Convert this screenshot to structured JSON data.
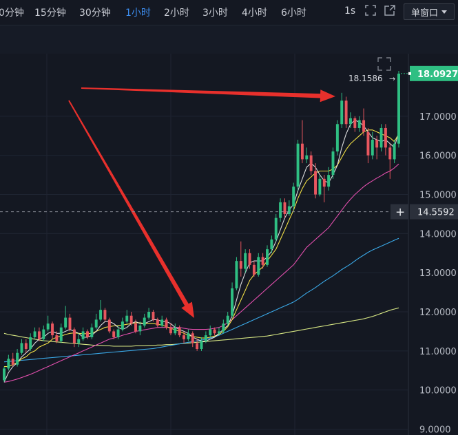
{
  "toolbar": {
    "timeframes": [
      {
        "label": "0分钟",
        "active": false
      },
      {
        "label": "15分钟",
        "active": false
      },
      {
        "label": "30分钟",
        "active": false
      },
      {
        "label": "1小时",
        "active": true
      },
      {
        "label": "2小时",
        "active": false
      },
      {
        "label": "3小时",
        "active": false
      },
      {
        "label": "4小时",
        "active": false
      },
      {
        "label": "6小时",
        "active": false
      }
    ],
    "seconds_label": "1s",
    "window_mode": "单窗口"
  },
  "colors": {
    "up": "#2fbf83",
    "down": "#e8575f",
    "ma5": "#ffffff",
    "ma10": "#f2e046",
    "ma30": "#e34fae",
    "ma60": "#3aa9e8",
    "ma120": "#d8e884",
    "arrow": "#e8302c",
    "last_price_bg": "#2fbf83"
  },
  "chart_data": {
    "type": "candlestick",
    "ylim": [
      8.85,
      18.6
    ],
    "y_ticks": [
      "18.0927",
      "17.0000",
      "16.0000",
      "15.0000",
      "14.0000",
      "13.0000",
      "12.0000",
      "11.0000",
      "10.0000",
      "9.0000"
    ],
    "last_price": "18.0927",
    "high_marker": "18.1586",
    "crosshair_price": "14.5592",
    "candles": [
      [
        10.25,
        10.55,
        10.2,
        10.6
      ],
      [
        10.55,
        10.8,
        10.5,
        10.9
      ],
      [
        10.8,
        10.65,
        10.6,
        10.95
      ],
      [
        10.65,
        10.95,
        10.6,
        11.05
      ],
      [
        10.95,
        11.2,
        10.9,
        11.3
      ],
      [
        11.2,
        11.05,
        10.95,
        11.3
      ],
      [
        11.05,
        11.35,
        11.0,
        11.45
      ],
      [
        11.35,
        11.5,
        11.3,
        11.6
      ],
      [
        11.5,
        11.3,
        11.25,
        11.6
      ],
      [
        11.3,
        11.55,
        11.25,
        11.65
      ],
      [
        11.55,
        11.7,
        11.5,
        11.9
      ],
      [
        11.7,
        11.4,
        11.3,
        11.75
      ],
      [
        11.4,
        11.25,
        11.2,
        11.5
      ],
      [
        11.25,
        11.6,
        11.2,
        11.7
      ],
      [
        11.6,
        11.85,
        11.55,
        12.15
      ],
      [
        11.85,
        11.55,
        11.5,
        11.95
      ],
      [
        11.55,
        11.2,
        11.1,
        11.6
      ],
      [
        11.2,
        11.3,
        11.1,
        11.45
      ],
      [
        11.3,
        11.5,
        11.25,
        11.6
      ],
      [
        11.5,
        11.35,
        11.3,
        11.55
      ],
      [
        11.35,
        11.6,
        11.3,
        11.7
      ],
      [
        11.6,
        11.8,
        11.55,
        11.95
      ],
      [
        11.8,
        12.05,
        11.75,
        12.3
      ],
      [
        12.05,
        11.8,
        11.75,
        12.1
      ],
      [
        11.8,
        11.5,
        11.45,
        11.85
      ],
      [
        11.5,
        11.35,
        11.3,
        11.55
      ],
      [
        11.35,
        11.55,
        11.3,
        11.65
      ],
      [
        11.55,
        11.75,
        11.5,
        11.85
      ],
      [
        11.75,
        11.9,
        11.7,
        12.05
      ],
      [
        11.9,
        11.7,
        11.65,
        12.0
      ],
      [
        11.7,
        11.5,
        11.45,
        11.8
      ],
      [
        11.5,
        11.65,
        11.4,
        11.75
      ],
      [
        11.65,
        11.85,
        11.6,
        11.95
      ],
      [
        11.85,
        12.0,
        11.8,
        12.1
      ],
      [
        12.0,
        11.8,
        11.75,
        12.05
      ],
      [
        11.8,
        11.65,
        11.6,
        11.85
      ],
      [
        11.65,
        11.8,
        11.6,
        11.9
      ],
      [
        11.8,
        11.6,
        11.55,
        11.85
      ],
      [
        11.6,
        11.45,
        11.4,
        11.7
      ],
      [
        11.45,
        11.6,
        11.4,
        11.7
      ],
      [
        11.6,
        11.4,
        11.35,
        11.65
      ],
      [
        11.4,
        11.3,
        11.2,
        11.5
      ],
      [
        11.3,
        11.45,
        11.25,
        11.55
      ],
      [
        11.45,
        11.2,
        11.1,
        11.5
      ],
      [
        11.2,
        11.05,
        11.0,
        11.3
      ],
      [
        11.05,
        11.25,
        11.0,
        11.35
      ],
      [
        11.25,
        11.4,
        11.2,
        11.5
      ],
      [
        11.4,
        11.55,
        11.35,
        11.65
      ],
      [
        11.55,
        11.45,
        11.4,
        11.6
      ],
      [
        11.45,
        11.5,
        11.4,
        11.6
      ],
      [
        11.5,
        11.7,
        11.45,
        11.8
      ],
      [
        11.7,
        11.9,
        11.65,
        12.0
      ],
      [
        11.9,
        12.6,
        11.85,
        12.75
      ],
      [
        12.6,
        13.3,
        12.55,
        13.4
      ],
      [
        13.3,
        13.1,
        12.9,
        13.8
      ],
      [
        13.1,
        13.5,
        13.0,
        13.6
      ],
      [
        13.5,
        13.2,
        13.1,
        13.6
      ],
      [
        13.2,
        12.95,
        12.9,
        13.3
      ],
      [
        12.95,
        13.4,
        12.9,
        13.5
      ],
      [
        13.4,
        13.2,
        13.1,
        13.5
      ],
      [
        13.2,
        13.6,
        13.15,
        13.7
      ],
      [
        13.6,
        13.85,
        13.5,
        13.95
      ],
      [
        13.85,
        14.4,
        13.8,
        14.5
      ],
      [
        14.4,
        14.8,
        14.3,
        14.9
      ],
      [
        14.8,
        14.5,
        14.4,
        14.9
      ],
      [
        14.5,
        14.7,
        14.45,
        14.85
      ],
      [
        14.7,
        15.2,
        14.6,
        15.3
      ],
      [
        15.2,
        16.3,
        15.1,
        16.4
      ],
      [
        16.3,
        15.9,
        15.8,
        16.9
      ],
      [
        15.9,
        16.0,
        15.8,
        16.2
      ],
      [
        16.0,
        15.6,
        15.5,
        16.1
      ],
      [
        15.6,
        15.0,
        14.9,
        15.8
      ],
      [
        15.0,
        15.4,
        14.95,
        15.5
      ],
      [
        15.4,
        15.2,
        14.8,
        15.5
      ],
      [
        15.2,
        15.5,
        15.1,
        15.7
      ],
      [
        15.5,
        16.1,
        15.4,
        16.2
      ],
      [
        16.1,
        16.8,
        16.0,
        16.9
      ],
      [
        16.8,
        17.4,
        16.7,
        17.6
      ],
      [
        17.4,
        16.8,
        16.7,
        17.5
      ],
      [
        16.8,
        16.95,
        16.7,
        17.1
      ],
      [
        16.95,
        16.7,
        16.6,
        17.0
      ],
      [
        16.7,
        16.9,
        16.6,
        17.0
      ],
      [
        16.9,
        16.6,
        16.5,
        17.2
      ],
      [
        16.6,
        16.0,
        15.8,
        16.7
      ],
      [
        16.0,
        16.4,
        15.9,
        16.6
      ],
      [
        16.4,
        16.2,
        15.9,
        16.5
      ],
      [
        16.2,
        16.7,
        16.1,
        16.8
      ],
      [
        16.7,
        16.2,
        16.0,
        16.8
      ],
      [
        16.2,
        15.9,
        15.4,
        16.3
      ],
      [
        15.9,
        16.3,
        15.8,
        16.4
      ],
      [
        16.3,
        18.09,
        16.2,
        18.16
      ]
    ],
    "ma5": [
      10.2,
      10.45,
      10.6,
      10.7,
      10.85,
      10.95,
      11.05,
      11.2,
      11.3,
      11.35,
      11.45,
      11.5,
      11.45,
      11.45,
      11.5,
      11.55,
      11.5,
      11.45,
      11.35,
      11.35,
      11.4,
      11.5,
      11.65,
      11.75,
      11.75,
      11.7,
      11.6,
      11.55,
      11.6,
      11.7,
      11.75,
      11.7,
      11.7,
      11.75,
      11.8,
      11.8,
      11.75,
      11.75,
      11.7,
      11.6,
      11.55,
      11.5,
      11.45,
      11.35,
      11.3,
      11.25,
      11.25,
      11.3,
      11.35,
      11.45,
      11.55,
      11.65,
      11.9,
      12.3,
      12.7,
      13.0,
      13.25,
      13.3,
      13.3,
      13.3,
      13.4,
      13.55,
      13.8,
      14.1,
      14.4,
      14.6,
      14.75,
      15.1,
      15.4,
      15.7,
      15.8,
      15.7,
      15.5,
      15.35,
      15.3,
      15.5,
      15.75,
      16.2,
      16.55,
      16.8,
      16.9,
      16.85,
      16.75,
      16.6,
      16.45,
      16.4,
      16.35,
      16.4,
      16.3,
      16.2,
      16.6
    ],
    "ma10": [
      10.6,
      10.6,
      10.65,
      10.7,
      10.8,
      10.85,
      10.95,
      11.0,
      11.1,
      11.15,
      11.2,
      11.3,
      11.35,
      11.38,
      11.42,
      11.45,
      11.46,
      11.45,
      11.44,
      11.44,
      11.45,
      11.5,
      11.55,
      11.6,
      11.62,
      11.64,
      11.65,
      11.66,
      11.68,
      11.7,
      11.72,
      11.72,
      11.7,
      11.7,
      11.7,
      11.68,
      11.66,
      11.62,
      11.58,
      11.54,
      11.5,
      11.45,
      11.4,
      11.37,
      11.35,
      11.33,
      11.33,
      11.35,
      11.38,
      11.42,
      11.5,
      11.62,
      11.8,
      12.05,
      12.3,
      12.55,
      12.8,
      12.95,
      13.05,
      13.15,
      13.3,
      13.45,
      13.6,
      13.85,
      14.1,
      14.35,
      14.6,
      14.9,
      15.15,
      15.35,
      15.45,
      15.55,
      15.6,
      15.6,
      15.6,
      15.65,
      15.75,
      15.95,
      16.15,
      16.3,
      16.4,
      16.5,
      16.6,
      16.65,
      16.65,
      16.6,
      16.55,
      16.5,
      16.45,
      16.35,
      16.55
    ],
    "ma30": [
      10.2,
      10.22,
      10.25,
      10.28,
      10.32,
      10.36,
      10.4,
      10.45,
      10.5,
      10.55,
      10.6,
      10.65,
      10.7,
      10.75,
      10.8,
      10.85,
      10.9,
      10.95,
      11.0,
      11.05,
      11.1,
      11.15,
      11.2,
      11.25,
      11.3,
      11.33,
      11.36,
      11.4,
      11.43,
      11.46,
      11.5,
      11.52,
      11.54,
      11.56,
      11.58,
      11.6,
      11.6,
      11.6,
      11.6,
      11.6,
      11.6,
      11.58,
      11.56,
      11.55,
      11.55,
      11.55,
      11.55,
      11.56,
      11.58,
      11.6,
      11.65,
      11.72,
      11.8,
      11.9,
      12.0,
      12.1,
      12.2,
      12.3,
      12.4,
      12.5,
      12.6,
      12.7,
      12.8,
      12.9,
      13.0,
      13.1,
      13.2,
      13.35,
      13.5,
      13.65,
      13.75,
      13.85,
      13.95,
      14.05,
      14.15,
      14.3,
      14.45,
      14.6,
      14.75,
      14.88,
      15.0,
      15.1,
      15.2,
      15.28,
      15.35,
      15.42,
      15.48,
      15.55,
      15.6,
      15.68,
      15.78
    ],
    "ma60": [
      10.72,
      10.73,
      10.74,
      10.75,
      10.76,
      10.77,
      10.78,
      10.79,
      10.8,
      10.81,
      10.82,
      10.83,
      10.84,
      10.85,
      10.86,
      10.87,
      10.88,
      10.89,
      10.9,
      10.91,
      10.92,
      10.93,
      10.94,
      10.95,
      10.96,
      10.97,
      10.98,
      10.99,
      11.0,
      11.01,
      11.02,
      11.03,
      11.04,
      11.05,
      11.06,
      11.08,
      11.1,
      11.12,
      11.14,
      11.16,
      11.18,
      11.2,
      11.22,
      11.24,
      11.26,
      11.28,
      11.3,
      11.33,
      11.36,
      11.4,
      11.45,
      11.5,
      11.55,
      11.6,
      11.65,
      11.7,
      11.75,
      11.8,
      11.85,
      11.9,
      11.95,
      12.0,
      12.05,
      12.1,
      12.15,
      12.2,
      12.25,
      12.32,
      12.4,
      12.48,
      12.55,
      12.62,
      12.7,
      12.78,
      12.85,
      12.92,
      13.0,
      13.08,
      13.15,
      13.22,
      13.3,
      13.38,
      13.45,
      13.52,
      13.58,
      13.63,
      13.68,
      13.73,
      13.78,
      13.83,
      13.88
    ],
    "ma120": [
      11.45,
      11.42,
      11.4,
      11.38,
      11.36,
      11.34,
      11.32,
      11.3,
      11.28,
      11.26,
      11.25,
      11.24,
      11.23,
      11.22,
      11.21,
      11.2,
      11.19,
      11.18,
      11.17,
      11.16,
      11.15,
      11.14,
      11.14,
      11.13,
      11.13,
      11.12,
      11.12,
      11.12,
      11.12,
      11.12,
      11.13,
      11.13,
      11.13,
      11.14,
      11.14,
      11.15,
      11.15,
      11.16,
      11.16,
      11.17,
      11.18,
      11.19,
      11.2,
      11.21,
      11.22,
      11.23,
      11.24,
      11.25,
      11.26,
      11.27,
      11.28,
      11.29,
      11.3,
      11.31,
      11.32,
      11.33,
      11.34,
      11.35,
      11.36,
      11.37,
      11.38,
      11.4,
      11.42,
      11.44,
      11.46,
      11.48,
      11.5,
      11.52,
      11.54,
      11.56,
      11.58,
      11.6,
      11.62,
      11.64,
      11.66,
      11.68,
      11.7,
      11.72,
      11.74,
      11.76,
      11.78,
      11.8,
      11.82,
      11.85,
      11.88,
      11.92,
      11.96,
      12.0,
      12.04,
      12.07,
      12.1
    ]
  }
}
